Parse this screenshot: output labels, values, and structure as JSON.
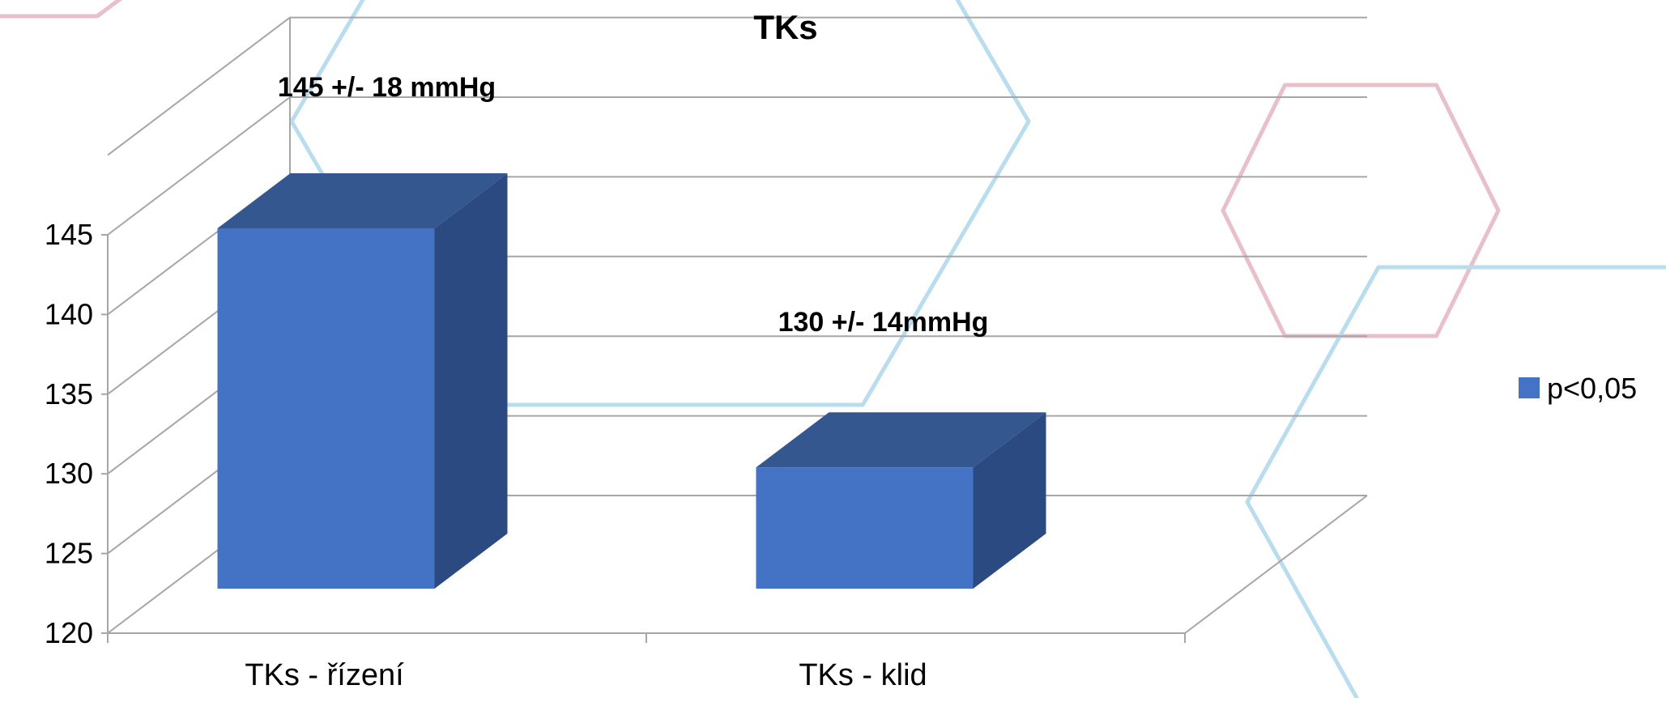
{
  "colors": {
    "bar_front": "#4472C4",
    "bar_top": "#35578F",
    "bar_side": "#2C4A82",
    "grid": "#A6A6A6",
    "deco_blue": "#B9DDEE",
    "deco_pink": "#E9BFC9",
    "text": "#000000"
  },
  "chart_data": {
    "type": "bar",
    "title": "TKs",
    "categories": [
      "TKs - řízení",
      "TKs - klid"
    ],
    "series": [
      {
        "name": "p<0,05",
        "values": [
          145,
          130
        ]
      }
    ],
    "data_labels": [
      "145 +/- 18 mmHg",
      "130 +/- 14mmHg"
    ],
    "ylim": [
      120,
      145
    ],
    "yticks": [
      "120",
      "125",
      "130",
      "135",
      "140",
      "145"
    ],
    "grid": true,
    "legend_position": "right",
    "three_d": true
  }
}
